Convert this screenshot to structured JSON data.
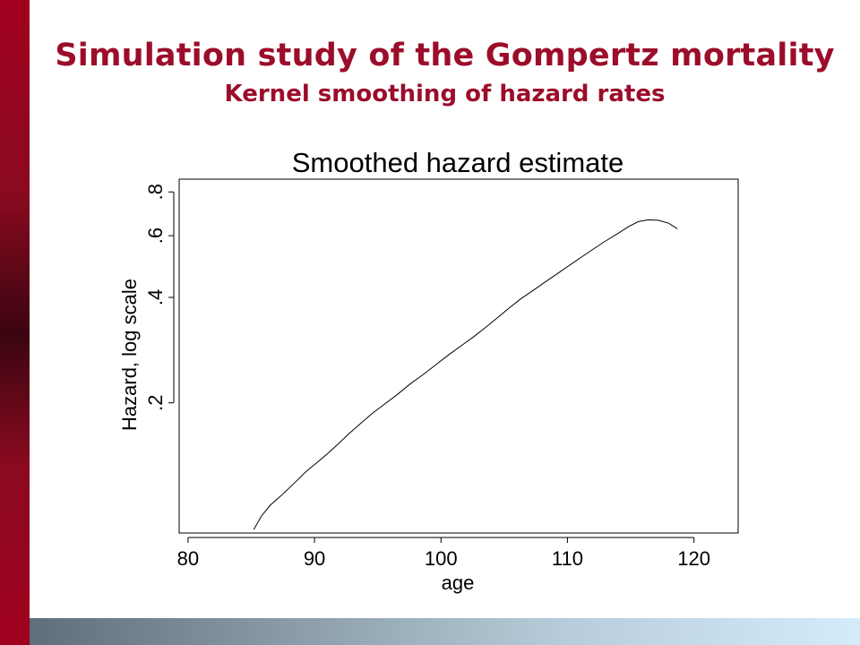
{
  "slide": {
    "title": "Simulation study of the Gompertz mortality",
    "subtitle": "Kernel smoothing of hazard rates"
  },
  "colors": {
    "title": "#9b0d2a",
    "left_bar": "#a0001e",
    "bottom_bar_start": "#5f6e7a",
    "bottom_bar_end": "#d4ecfa",
    "line": "#000000"
  },
  "chart_data": {
    "type": "line",
    "title": "Smoothed hazard estimate",
    "xlabel": "age",
    "ylabel": "Hazard, log scale",
    "xlim": [
      79.3,
      123.5
    ],
    "ylim": [
      0.085,
      0.87
    ],
    "y_scale": "log",
    "grid": false,
    "x_ticks": [
      80,
      90,
      100,
      110,
      120
    ],
    "x_tick_labels": [
      "80",
      "90",
      "100",
      "110",
      "120"
    ],
    "y_ticks": [
      0.2,
      0.4,
      0.6,
      0.8
    ],
    "y_tick_labels": [
      ".2",
      ".4",
      ".6",
      ".8"
    ],
    "series": [
      {
        "x": [
          85.2,
          85.8,
          86.5,
          87.4,
          88.4,
          89.4,
          90.2,
          91.0,
          91.9,
          92.7,
          93.6,
          94.6,
          95.6,
          96.6,
          97.6,
          98.6,
          99.6,
          100.6,
          101.6,
          102.6,
          103.6,
          104.5,
          105.4,
          106.3,
          107.3,
          108.3,
          109.3,
          110.2,
          111.1,
          112.0,
          112.9,
          113.9,
          114.8,
          115.6,
          116.4,
          117.2,
          118.0,
          118.7
        ],
        "y": [
          0.087,
          0.095,
          0.102,
          0.109,
          0.118,
          0.128,
          0.135,
          0.143,
          0.153,
          0.163,
          0.174,
          0.187,
          0.199,
          0.212,
          0.227,
          0.241,
          0.257,
          0.274,
          0.291,
          0.309,
          0.33,
          0.351,
          0.373,
          0.396,
          0.419,
          0.444,
          0.47,
          0.495,
          0.521,
          0.548,
          0.576,
          0.606,
          0.636,
          0.658,
          0.666,
          0.664,
          0.651,
          0.628
        ]
      }
    ]
  }
}
